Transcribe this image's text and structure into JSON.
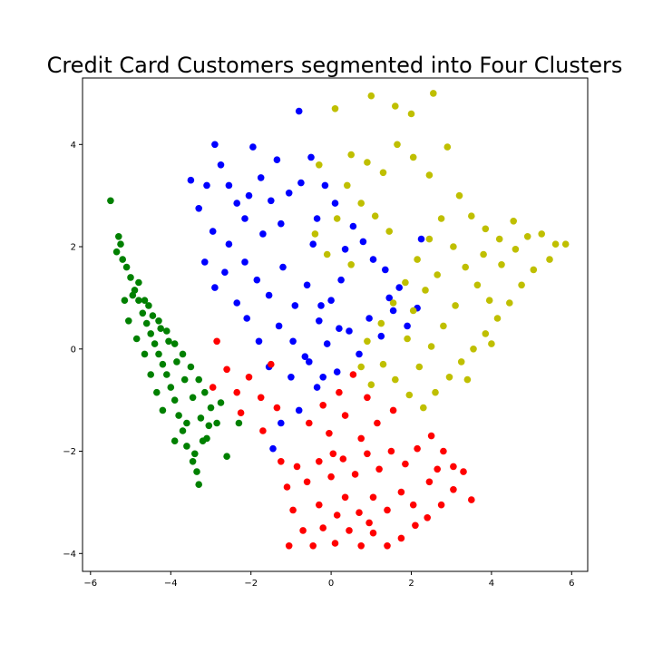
{
  "chart_data": {
    "type": "scatter",
    "title": "Credit Card Customers segmented into Four Clusters",
    "xlabel": "",
    "ylabel": "",
    "xlim": [
      -6.2,
      6.4
    ],
    "ylim": [
      -4.35,
      5.3
    ],
    "x_ticks": [
      -6,
      -4,
      -2,
      0,
      2,
      4,
      6
    ],
    "y_ticks": [
      -4,
      -2,
      0,
      2,
      4
    ],
    "x_tick_labels": [
      "−6",
      "−4",
      "−2",
      "0",
      "2",
      "4",
      "6"
    ],
    "y_tick_labels": [
      "−4",
      "−2",
      "0",
      "2",
      "4"
    ],
    "grid": false,
    "legend": "none",
    "series": [
      {
        "color": "#008000",
        "points": [
          [
            -5.5,
            2.9
          ],
          [
            -5.3,
            2.2
          ],
          [
            -5.25,
            2.05
          ],
          [
            -5.35,
            1.9
          ],
          [
            -5.2,
            1.75
          ],
          [
            -5.1,
            1.6
          ],
          [
            -5.0,
            1.4
          ],
          [
            -4.9,
            1.15
          ],
          [
            -4.8,
            0.95
          ],
          [
            -4.7,
            0.7
          ],
          [
            -4.6,
            0.5
          ],
          [
            -4.5,
            0.3
          ],
          [
            -4.4,
            0.1
          ],
          [
            -4.3,
            -0.1
          ],
          [
            -4.2,
            -0.3
          ],
          [
            -4.1,
            -0.5
          ],
          [
            -4.0,
            -0.75
          ],
          [
            -3.9,
            -1.0
          ],
          [
            -3.8,
            -1.3
          ],
          [
            -3.7,
            -1.6
          ],
          [
            -3.6,
            -1.9
          ],
          [
            -3.45,
            -2.2
          ],
          [
            -3.35,
            -2.4
          ],
          [
            -3.4,
            -2.05
          ],
          [
            -3.2,
            -1.8
          ],
          [
            -3.05,
            -1.5
          ],
          [
            -3.0,
            -1.15
          ],
          [
            -3.15,
            -0.85
          ],
          [
            -3.3,
            -0.6
          ],
          [
            -3.5,
            -0.35
          ],
          [
            -3.7,
            -0.1
          ],
          [
            -3.9,
            0.1
          ],
          [
            -4.1,
            0.35
          ],
          [
            -4.3,
            0.55
          ],
          [
            -4.55,
            0.85
          ],
          [
            -4.8,
            1.3
          ],
          [
            -4.95,
            1.05
          ],
          [
            -4.65,
            0.95
          ],
          [
            -4.45,
            0.65
          ],
          [
            -4.25,
            0.4
          ],
          [
            -4.05,
            0.15
          ],
          [
            -3.85,
            -0.25
          ],
          [
            -3.65,
            -0.6
          ],
          [
            -3.45,
            -0.95
          ],
          [
            -3.25,
            -1.35
          ],
          [
            -3.1,
            -1.75
          ],
          [
            -2.85,
            -1.45
          ],
          [
            -2.75,
            -1.05
          ],
          [
            -3.6,
            -1.45
          ],
          [
            -3.9,
            -1.8
          ],
          [
            -4.2,
            -1.2
          ],
          [
            -4.35,
            -0.85
          ],
          [
            -4.5,
            -0.5
          ],
          [
            -4.65,
            -0.1
          ],
          [
            -4.85,
            0.2
          ],
          [
            -5.05,
            0.55
          ],
          [
            -5.15,
            0.95
          ],
          [
            -3.3,
            -2.65
          ],
          [
            -2.6,
            -2.1
          ],
          [
            -2.3,
            -1.45
          ]
        ]
      },
      {
        "color": "#0000ff",
        "points": [
          [
            -3.5,
            3.3
          ],
          [
            -3.3,
            2.75
          ],
          [
            -3.1,
            3.2
          ],
          [
            -2.9,
            4.0
          ],
          [
            -2.75,
            3.6
          ],
          [
            -2.55,
            3.2
          ],
          [
            -2.35,
            2.85
          ],
          [
            -2.15,
            2.55
          ],
          [
            -1.95,
            3.95
          ],
          [
            -1.75,
            3.35
          ],
          [
            -1.5,
            2.9
          ],
          [
            -1.25,
            2.45
          ],
          [
            -1.05,
            3.05
          ],
          [
            -0.8,
            4.65
          ],
          [
            -0.75,
            3.25
          ],
          [
            -0.5,
            3.75
          ],
          [
            -0.35,
            2.55
          ],
          [
            -0.15,
            3.2
          ],
          [
            0.1,
            2.85
          ],
          [
            0.35,
            1.95
          ],
          [
            0.55,
            2.4
          ],
          [
            0.8,
            2.1
          ],
          [
            1.05,
            1.75
          ],
          [
            1.35,
            1.55
          ],
          [
            1.7,
            1.2
          ],
          [
            2.25,
            2.15
          ],
          [
            2.15,
            0.8
          ],
          [
            1.9,
            0.45
          ],
          [
            1.55,
            0.75
          ],
          [
            1.25,
            0.25
          ],
          [
            0.95,
            0.6
          ],
          [
            0.7,
            -0.1
          ],
          [
            0.45,
            0.35
          ],
          [
            0.15,
            -0.45
          ],
          [
            -0.1,
            0.1
          ],
          [
            -0.35,
            -0.75
          ],
          [
            -0.55,
            -0.25
          ],
          [
            -0.8,
            -1.2
          ],
          [
            -1.0,
            -0.55
          ],
          [
            -1.25,
            -1.45
          ],
          [
            -1.55,
            -0.35
          ],
          [
            -1.45,
            -1.95
          ],
          [
            -1.8,
            0.15
          ],
          [
            -2.1,
            0.6
          ],
          [
            -2.35,
            0.9
          ],
          [
            -2.65,
            1.5
          ],
          [
            -2.9,
            1.2
          ],
          [
            -3.15,
            1.7
          ],
          [
            -2.95,
            2.3
          ],
          [
            -2.55,
            2.05
          ],
          [
            -2.15,
            1.7
          ],
          [
            -1.85,
            1.35
          ],
          [
            -1.55,
            1.05
          ],
          [
            -1.2,
            1.6
          ],
          [
            -0.9,
            0.85
          ],
          [
            -0.6,
            1.25
          ],
          [
            -0.3,
            0.55
          ],
          [
            0.0,
            0.95
          ],
          [
            0.25,
            1.35
          ],
          [
            -1.3,
            0.45
          ],
          [
            -0.95,
            0.15
          ],
          [
            -0.65,
            -0.15
          ],
          [
            -0.2,
            -0.55
          ],
          [
            -0.45,
            2.05
          ],
          [
            -1.7,
            2.25
          ],
          [
            -2.05,
            3.0
          ],
          [
            -1.35,
            3.7
          ],
          [
            -0.25,
            0.85
          ],
          [
            1.45,
            1.0
          ],
          [
            0.2,
            0.4
          ]
        ]
      },
      {
        "color": "#bfbf00",
        "points": [
          [
            0.1,
            4.7
          ],
          [
            1.0,
            4.95
          ],
          [
            1.6,
            4.75
          ],
          [
            2.0,
            4.6
          ],
          [
            2.55,
            5.0
          ],
          [
            0.5,
            3.8
          ],
          [
            0.9,
            3.65
          ],
          [
            1.3,
            3.45
          ],
          [
            1.65,
            4.0
          ],
          [
            2.05,
            3.75
          ],
          [
            2.45,
            3.4
          ],
          [
            2.9,
            3.95
          ],
          [
            3.2,
            3.0
          ],
          [
            3.5,
            2.6
          ],
          [
            3.85,
            2.35
          ],
          [
            4.2,
            2.15
          ],
          [
            4.55,
            2.5
          ],
          [
            4.9,
            2.2
          ],
          [
            5.25,
            2.25
          ],
          [
            5.6,
            2.05
          ],
          [
            5.85,
            2.05
          ],
          [
            5.45,
            1.75
          ],
          [
            5.05,
            1.55
          ],
          [
            4.75,
            1.25
          ],
          [
            4.45,
            0.9
          ],
          [
            4.15,
            0.6
          ],
          [
            3.85,
            0.3
          ],
          [
            3.55,
            0.0
          ],
          [
            3.25,
            -0.25
          ],
          [
            2.95,
            -0.55
          ],
          [
            2.6,
            -0.85
          ],
          [
            2.3,
            -1.15
          ],
          [
            1.95,
            -0.9
          ],
          [
            1.6,
            -0.6
          ],
          [
            1.3,
            -0.3
          ],
          [
            1.0,
            -0.7
          ],
          [
            0.75,
            -0.35
          ],
          [
            0.9,
            0.15
          ],
          [
            1.25,
            0.5
          ],
          [
            1.55,
            0.9
          ],
          [
            1.85,
            1.3
          ],
          [
            2.15,
            1.75
          ],
          [
            2.45,
            2.15
          ],
          [
            2.75,
            2.55
          ],
          [
            3.05,
            2.0
          ],
          [
            3.35,
            1.6
          ],
          [
            3.65,
            1.25
          ],
          [
            3.95,
            0.95
          ],
          [
            4.25,
            1.65
          ],
          [
            4.6,
            1.95
          ],
          [
            3.1,
            0.85
          ],
          [
            2.8,
            0.45
          ],
          [
            2.5,
            0.05
          ],
          [
            2.2,
            -0.35
          ],
          [
            1.9,
            0.2
          ],
          [
            2.05,
            0.75
          ],
          [
            2.35,
            1.15
          ],
          [
            2.65,
            1.45
          ],
          [
            0.4,
            3.2
          ],
          [
            0.75,
            2.85
          ],
          [
            1.1,
            2.6
          ],
          [
            1.45,
            2.3
          ],
          [
            0.15,
            2.55
          ],
          [
            -0.3,
            3.6
          ],
          [
            -0.4,
            2.25
          ],
          [
            -0.1,
            1.85
          ],
          [
            0.5,
            1.65
          ],
          [
            3.8,
            1.85
          ],
          [
            4.0,
            0.1
          ],
          [
            3.4,
            -0.6
          ]
        ]
      },
      {
        "color": "#ff0000",
        "points": [
          [
            -2.85,
            0.15
          ],
          [
            -2.6,
            -0.4
          ],
          [
            -2.35,
            -0.85
          ],
          [
            -2.25,
            -1.25
          ],
          [
            -2.05,
            -0.55
          ],
          [
            -1.75,
            -0.95
          ],
          [
            -1.7,
            -1.6
          ],
          [
            -1.35,
            -1.15
          ],
          [
            -1.25,
            -2.2
          ],
          [
            -1.1,
            -2.7
          ],
          [
            -0.95,
            -3.15
          ],
          [
            -1.05,
            -3.85
          ],
          [
            -0.7,
            -3.55
          ],
          [
            -0.45,
            -3.85
          ],
          [
            -0.2,
            -3.5
          ],
          [
            0.1,
            -3.8
          ],
          [
            0.45,
            -3.55
          ],
          [
            0.75,
            -3.85
          ],
          [
            1.05,
            -3.6
          ],
          [
            1.4,
            -3.85
          ],
          [
            1.75,
            -3.7
          ],
          [
            2.1,
            -3.45
          ],
          [
            2.4,
            -3.3
          ],
          [
            2.75,
            -3.05
          ],
          [
            3.05,
            -2.75
          ],
          [
            3.3,
            -2.4
          ],
          [
            3.5,
            -2.95
          ],
          [
            3.05,
            -2.3
          ],
          [
            2.8,
            -2.0
          ],
          [
            2.5,
            -1.7
          ],
          [
            2.15,
            -1.95
          ],
          [
            1.85,
            -2.25
          ],
          [
            1.5,
            -2.0
          ],
          [
            1.2,
            -2.35
          ],
          [
            0.9,
            -2.05
          ],
          [
            0.6,
            -2.45
          ],
          [
            0.3,
            -2.15
          ],
          [
            0.0,
            -2.5
          ],
          [
            -0.3,
            -2.2
          ],
          [
            -0.6,
            -2.6
          ],
          [
            -0.85,
            -2.3
          ],
          [
            0.35,
            -2.9
          ],
          [
            0.7,
            -3.2
          ],
          [
            1.05,
            -2.9
          ],
          [
            1.4,
            -3.15
          ],
          [
            1.75,
            -2.8
          ],
          [
            2.05,
            -3.05
          ],
          [
            2.45,
            -2.6
          ],
          [
            0.15,
            -3.25
          ],
          [
            -0.3,
            -3.05
          ],
          [
            -0.55,
            -1.45
          ],
          [
            -0.2,
            -1.1
          ],
          [
            0.2,
            -0.85
          ],
          [
            0.55,
            -0.5
          ],
          [
            0.9,
            -0.95
          ],
          [
            1.15,
            -1.45
          ],
          [
            0.75,
            -1.75
          ],
          [
            0.35,
            -1.3
          ],
          [
            -0.05,
            -1.65
          ],
          [
            1.55,
            -1.2
          ],
          [
            -2.95,
            -0.75
          ],
          [
            -1.5,
            -0.3
          ],
          [
            0.95,
            -3.4
          ],
          [
            2.65,
            -2.35
          ],
          [
            0.05,
            -2.05
          ]
        ]
      }
    ]
  }
}
